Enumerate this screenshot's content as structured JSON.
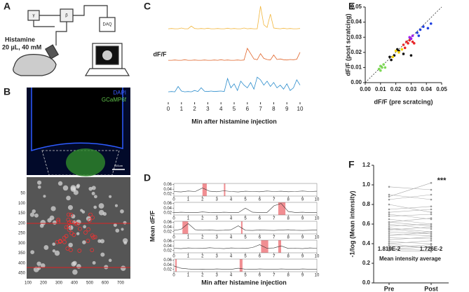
{
  "panel_labels": [
    "A",
    "B",
    "C",
    "D",
    "E",
    "F"
  ],
  "panel_a": {
    "drug": "Histamine",
    "dose": "20 µL, 40 mM",
    "daq": "DAQ",
    "gamma": "γ",
    "beta": "β"
  },
  "panel_b": {
    "stain_1": "DAPI",
    "stain_2": "GCaMP6f",
    "scale_bar": "200um",
    "image_yticks": [
      50,
      100,
      150,
      200,
      250,
      300,
      350,
      400,
      450
    ],
    "image_xticks": [
      100,
      200,
      300,
      400,
      500,
      600,
      700
    ]
  },
  "chart_data": [
    {
      "type": "line",
      "ylabel": "dF/F",
      "xlabel": "Min after histamine injection",
      "x": [
        0,
        0.25,
        0.5,
        0.75,
        1,
        1.25,
        1.5,
        1.75,
        2,
        2.25,
        2.5,
        2.75,
        3,
        3.25,
        3.5,
        3.75,
        4,
        4.25,
        4.5,
        4.75,
        5,
        5.25,
        5.5,
        5.75,
        6,
        6.25,
        6.5,
        6.75,
        7,
        7.25,
        7.5,
        7.75,
        8,
        8.25,
        8.5,
        8.75,
        9,
        9.25,
        9.5,
        9.75,
        10
      ],
      "xlim": [
        0,
        10
      ],
      "xticks": [
        0,
        1,
        2,
        3,
        4,
        5,
        6,
        7,
        8,
        9,
        10
      ],
      "ylim": [
        0,
        1
      ],
      "series": [
        {
          "color": "#f2b63c",
          "values": [
            0.05,
            0.06,
            0.05,
            0.05,
            0.08,
            0.05,
            0.05,
            0.15,
            0.06,
            0.05,
            0.06,
            0.05,
            0.07,
            0.05,
            0.05,
            0.06,
            0.05,
            0.05,
            0.07,
            0.05,
            0.06,
            0.05,
            0.05,
            0.08,
            0.05,
            0.06,
            0.05,
            0.05,
            0.9,
            0.2,
            0.1,
            0.6,
            0.08,
            0.06,
            0.05,
            0.07,
            0.05,
            0.06,
            0.05,
            0.05,
            0.06
          ]
        },
        {
          "color": "#e0652a",
          "values": [
            0.05,
            0.05,
            0.06,
            0.05,
            0.05,
            0.07,
            0.05,
            0.05,
            0.06,
            0.05,
            0.05,
            0.06,
            0.05,
            0.05,
            0.06,
            0.05,
            0.07,
            0.05,
            0.06,
            0.05,
            0.05,
            0.06,
            0.05,
            0.06,
            0.5,
            0.3,
            0.1,
            0.07,
            0.3,
            0.12,
            0.08,
            0.06,
            0.25,
            0.08,
            0.1,
            0.07,
            0.06,
            0.08,
            0.07,
            0.09,
            0.35
          ]
        },
        {
          "color": "#2a8ccc",
          "values": [
            0.05,
            0.06,
            0.05,
            0.25,
            0.08,
            0.05,
            0.06,
            0.05,
            0.1,
            0.06,
            0.2,
            0.07,
            0.06,
            0.08,
            0.06,
            0.07,
            0.08,
            0.06,
            0.55,
            0.2,
            0.35,
            0.1,
            0.45,
            0.3,
            0.2,
            0.4,
            0.15,
            0.6,
            0.5,
            0.3,
            0.45,
            0.25,
            0.4,
            0.2,
            0.3,
            0.15,
            0.35,
            0.1,
            0.2,
            0.5,
            0.3
          ]
        }
      ]
    },
    {
      "type": "line-panels",
      "ylabel": "Mean dF/F",
      "xlabel": "Min after histamine injection",
      "x": [
        0,
        0.5,
        1,
        1.5,
        2,
        2.5,
        3,
        3.5,
        4,
        4.5,
        5,
        5.5,
        6,
        6.5,
        7,
        7.5,
        8,
        8.5,
        9,
        9.5,
        10
      ],
      "xlim": [
        0,
        10
      ],
      "xticks": [
        0,
        1,
        2,
        3,
        4,
        5,
        6,
        7,
        8,
        9,
        10
      ],
      "ylim": [
        0.01,
        0.065
      ],
      "yticks": [
        0.02,
        0.04,
        0.06
      ],
      "color": "#333333",
      "highlight_color": "#e8434a",
      "subplots": [
        {
          "values": [
            0.03,
            0.028,
            0.032,
            0.03,
            0.045,
            0.031,
            0.029,
            0.033,
            0.03,
            0.028,
            0.031,
            0.03,
            0.029,
            0.032,
            0.03,
            0.031,
            0.029,
            0.03,
            0.032,
            0.03,
            0.031
          ],
          "highlights": [
            [
              2.0,
              2.3
            ],
            [
              3.5,
              3.6
            ]
          ]
        },
        {
          "values": [
            0.02,
            0.022,
            0.021,
            0.02,
            0.023,
            0.021,
            0.02,
            0.022,
            0.021,
            0.02,
            0.04,
            0.022,
            0.021,
            0.02,
            0.05,
            0.06,
            0.025,
            0.021,
            0.022,
            0.02,
            0.021
          ],
          "highlights": [
            [
              7.3,
              7.8
            ]
          ]
        },
        {
          "values": [
            0.025,
            0.03,
            0.055,
            0.028,
            0.026,
            0.027,
            0.025,
            0.026,
            0.028,
            0.045,
            0.026,
            0.025,
            0.027,
            0.026,
            0.025,
            0.027,
            0.028,
            0.026,
            0.025,
            0.026,
            0.027
          ],
          "highlights": [
            [
              0.6,
              1.0
            ],
            [
              4.7,
              4.8
            ]
          ]
        },
        {
          "values": [
            0.03,
            0.028,
            0.031,
            0.03,
            0.029,
            0.032,
            0.03,
            0.028,
            0.031,
            0.03,
            0.029,
            0.033,
            0.045,
            0.03,
            0.031,
            0.04,
            0.029,
            0.03,
            0.028,
            0.031,
            0.03
          ],
          "highlights": [
            [
              6.1,
              6.6
            ],
            [
              7.3,
              7.5
            ]
          ]
        },
        {
          "values": [
            0.035,
            0.025,
            0.022,
            0.02,
            0.021,
            0.02,
            0.022,
            0.021,
            0.02,
            0.025,
            0.021,
            0.02,
            0.022,
            0.021,
            0.02,
            0.022,
            0.021,
            0.02,
            0.022,
            0.021,
            0.02
          ],
          "highlights": [
            [
              0.1,
              0.2
            ],
            [
              4.6,
              4.8
            ]
          ]
        }
      ]
    },
    {
      "type": "scatter",
      "xlabel": "dF/F (pre scratcing)",
      "ylabel": "dF/F (post scratcing)",
      "diagonal": true,
      "xlim": [
        0,
        0.05
      ],
      "ylim": [
        0,
        0.05
      ],
      "xticks": [
        {
          "value": 0,
          "label": "0.00"
        },
        0.01,
        0.02,
        0.03,
        0.04,
        0.05
      ],
      "yticks": [
        {
          "value": 0,
          "label": "0.00"
        },
        0.01,
        0.02,
        0.03,
        0.04,
        0.05
      ],
      "series": [
        {
          "color": "#7ed957",
          "x": [
            0.009,
            0.01,
            0.011,
            0.012,
            0.01,
            0.013
          ],
          "values": [
            0.009,
            0.011,
            0.01,
            0.012,
            0.008,
            0.01
          ]
        },
        {
          "color": "#111111",
          "x": [
            0.016,
            0.017,
            0.019,
            0.022,
            0.025,
            0.03,
            0.021
          ],
          "values": [
            0.017,
            0.015,
            0.018,
            0.021,
            0.019,
            0.018,
            0.022
          ]
        },
        {
          "color": "#f5d300",
          "x": [
            0.018,
            0.02,
            0.022,
            0.024
          ],
          "values": [
            0.017,
            0.021,
            0.02,
            0.022
          ]
        },
        {
          "color": "#e8282b",
          "x": [
            0.025,
            0.027,
            0.028,
            0.029,
            0.03,
            0.031,
            0.026,
            0.032
          ],
          "values": [
            0.025,
            0.027,
            0.026,
            0.028,
            0.029,
            0.027,
            0.023,
            0.026
          ]
        },
        {
          "color": "#a020f0",
          "x": [
            0.029,
            0.031,
            0.03
          ],
          "values": [
            0.03,
            0.031,
            0.029
          ]
        },
        {
          "color": "#2040e0",
          "x": [
            0.034,
            0.036,
            0.038,
            0.041,
            0.043,
            0.035
          ],
          "values": [
            0.033,
            0.035,
            0.037,
            0.036,
            0.039,
            0.031
          ]
        }
      ]
    },
    {
      "type": "paired",
      "ylabel": "-1/log (Mean intensity)",
      "categories": [
        "Pre",
        "Post"
      ],
      "color": "#aaaaaa",
      "ylim": [
        0,
        1.2
      ],
      "yticks": [
        {
          "value": 0,
          "label": "0.0"
        },
        0.2,
        0.4,
        0.6,
        0.8,
        {
          "value": 1,
          "label": "1.0"
        },
        1.2
      ],
      "pairs": [
        [
          0.98,
          0.95
        ],
        [
          0.9,
          0.85
        ],
        [
          0.85,
          0.9
        ],
        [
          0.8,
          0.72
        ],
        [
          0.75,
          0.78
        ],
        [
          0.7,
          0.65
        ],
        [
          0.68,
          0.7
        ],
        [
          0.65,
          0.6
        ],
        [
          0.62,
          0.66
        ],
        [
          0.6,
          0.55
        ],
        [
          0.58,
          0.6
        ],
        [
          0.56,
          0.52
        ],
        [
          0.54,
          0.57
        ],
        [
          0.52,
          0.5
        ],
        [
          0.5,
          0.48
        ],
        [
          0.48,
          0.52
        ],
        [
          0.46,
          0.45
        ],
        [
          0.44,
          0.47
        ],
        [
          0.42,
          0.4
        ],
        [
          0.4,
          0.43
        ],
        [
          0.38,
          0.36
        ],
        [
          0.36,
          0.39
        ],
        [
          0.35,
          0.33
        ],
        [
          0.34,
          0.37
        ],
        [
          0.33,
          0.32
        ],
        [
          0.4,
          0.35
        ],
        [
          0.55,
          0.5
        ],
        [
          0.62,
          0.58
        ],
        [
          0.72,
          0.75
        ],
        [
          0.88,
          1.02
        ]
      ],
      "annotations": {
        "significance": "***",
        "pre_average": "1.819E-2",
        "post_average": "1.726E-2",
        "average_caption": "Mean intensity average"
      }
    }
  ]
}
